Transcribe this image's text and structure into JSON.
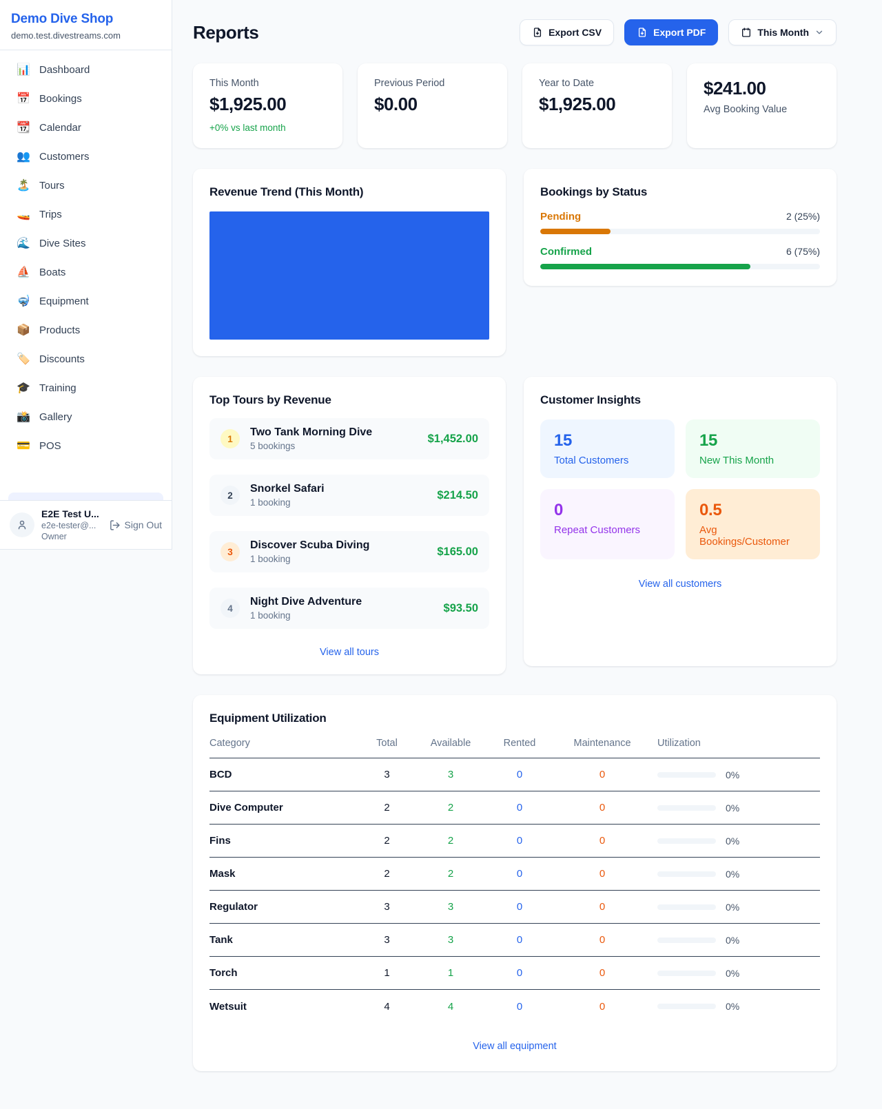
{
  "colors": {
    "accent": "#2563eb",
    "green": "#16a34a",
    "orange": "#ea580c",
    "amber": "#d97706",
    "purple": "#9333ea"
  },
  "sidebar": {
    "brand": {
      "name": "Demo Dive Shop",
      "domain": "demo.test.divestreams.com"
    },
    "nav": [
      {
        "icon": "📊",
        "label": "Dashboard"
      },
      {
        "icon": "📅",
        "label": "Bookings"
      },
      {
        "icon": "📆",
        "label": "Calendar"
      },
      {
        "icon": "👥",
        "label": "Customers"
      },
      {
        "icon": "🏝️",
        "label": "Tours"
      },
      {
        "icon": "🚤",
        "label": "Trips"
      },
      {
        "icon": "🌊",
        "label": "Dive Sites"
      },
      {
        "icon": "⛵",
        "label": "Boats"
      },
      {
        "icon": "🤿",
        "label": "Equipment"
      },
      {
        "icon": "📦",
        "label": "Products"
      },
      {
        "icon": "🏷️",
        "label": "Discounts"
      },
      {
        "icon": "🎓",
        "label": "Training"
      },
      {
        "icon": "📸",
        "label": "Gallery"
      },
      {
        "icon": "💳",
        "label": "POS"
      }
    ],
    "user": {
      "name": "E2E Test U...",
      "email": "e2e-tester@...",
      "role": "Owner",
      "signout_label": "Sign Out"
    }
  },
  "header": {
    "title": "Reports",
    "export_csv_label": "Export CSV",
    "export_pdf_label": "Export PDF",
    "period_label": "This Month"
  },
  "stats": [
    {
      "label": "This Month",
      "value": "$1,925.00",
      "delta": "+0% vs last month",
      "value_first": false
    },
    {
      "label": "Previous Period",
      "value": "$0.00",
      "delta": "",
      "value_first": false
    },
    {
      "label": "Year to Date",
      "value": "$1,925.00",
      "delta": "",
      "value_first": false
    },
    {
      "label": "Avg Booking Value",
      "value": "$241.00",
      "delta": "",
      "value_first": true
    }
  ],
  "revenue_trend": {
    "title": "Revenue Trend (This Month)",
    "bar_color": "#2563eb",
    "fill_pct": 100
  },
  "bookings_by_status": {
    "title": "Bookings by Status",
    "rows": [
      {
        "label": "Pending",
        "count_text": "2 (25%)",
        "pct": 25,
        "color": "#d97706"
      },
      {
        "label": "Confirmed",
        "count_text": "6 (75%)",
        "pct": 75,
        "color": "#16a34a"
      }
    ]
  },
  "top_tours": {
    "title": "Top Tours by Revenue",
    "items": [
      {
        "rank": "1",
        "name": "Two Tank Morning Dive",
        "bookings": "5 bookings",
        "revenue": "$1,452.00",
        "badge_bg": "#fef9c3",
        "badge_color": "#d97706"
      },
      {
        "rank": "2",
        "name": "Snorkel Safari",
        "bookings": "1 booking",
        "revenue": "$214.50",
        "badge_bg": "#f1f5f9",
        "badge_color": "#334155"
      },
      {
        "rank": "3",
        "name": "Discover Scuba Diving",
        "bookings": "1 booking",
        "revenue": "$165.00",
        "badge_bg": "#ffedd5",
        "badge_color": "#ea580c"
      },
      {
        "rank": "4",
        "name": "Night Dive Adventure",
        "bookings": "1 booking",
        "revenue": "$93.50",
        "badge_bg": "#f1f5f9",
        "badge_color": "#64748b"
      }
    ],
    "view_all_label": "View all tours"
  },
  "customer_insights": {
    "title": "Customer Insights",
    "tiles": [
      {
        "value": "15",
        "label": "Total Customers",
        "bg": "#eff6ff",
        "color": "#2563eb"
      },
      {
        "value": "15",
        "label": "New This Month",
        "bg": "#f0fdf4",
        "color": "#16a34a"
      },
      {
        "value": "0",
        "label": "Repeat Customers",
        "bg": "#faf5ff",
        "color": "#9333ea"
      },
      {
        "value": "0.5",
        "label": "Avg Bookings/Customer",
        "bg": "#ffedd5",
        "color": "#ea580c"
      }
    ],
    "view_all_label": "View all customers"
  },
  "equipment": {
    "title": "Equipment Utilization",
    "columns": [
      "Category",
      "Total",
      "Available",
      "Rented",
      "Maintenance",
      "Utilization"
    ],
    "rows": [
      {
        "category": "BCD",
        "total": "3",
        "available": "3",
        "rented": "0",
        "maintenance": "0",
        "utilization": "0%"
      },
      {
        "category": "Dive Computer",
        "total": "2",
        "available": "2",
        "rented": "0",
        "maintenance": "0",
        "utilization": "0%"
      },
      {
        "category": "Fins",
        "total": "2",
        "available": "2",
        "rented": "0",
        "maintenance": "0",
        "utilization": "0%"
      },
      {
        "category": "Mask",
        "total": "2",
        "available": "2",
        "rented": "0",
        "maintenance": "0",
        "utilization": "0%"
      },
      {
        "category": "Regulator",
        "total": "3",
        "available": "3",
        "rented": "0",
        "maintenance": "0",
        "utilization": "0%"
      },
      {
        "category": "Tank",
        "total": "3",
        "available": "3",
        "rented": "0",
        "maintenance": "0",
        "utilization": "0%"
      },
      {
        "category": "Torch",
        "total": "1",
        "available": "1",
        "rented": "0",
        "maintenance": "0",
        "utilization": "0%"
      },
      {
        "category": "Wetsuit",
        "total": "4",
        "available": "4",
        "rented": "0",
        "maintenance": "0",
        "utilization": "0%"
      }
    ],
    "view_all_label": "View all equipment"
  }
}
